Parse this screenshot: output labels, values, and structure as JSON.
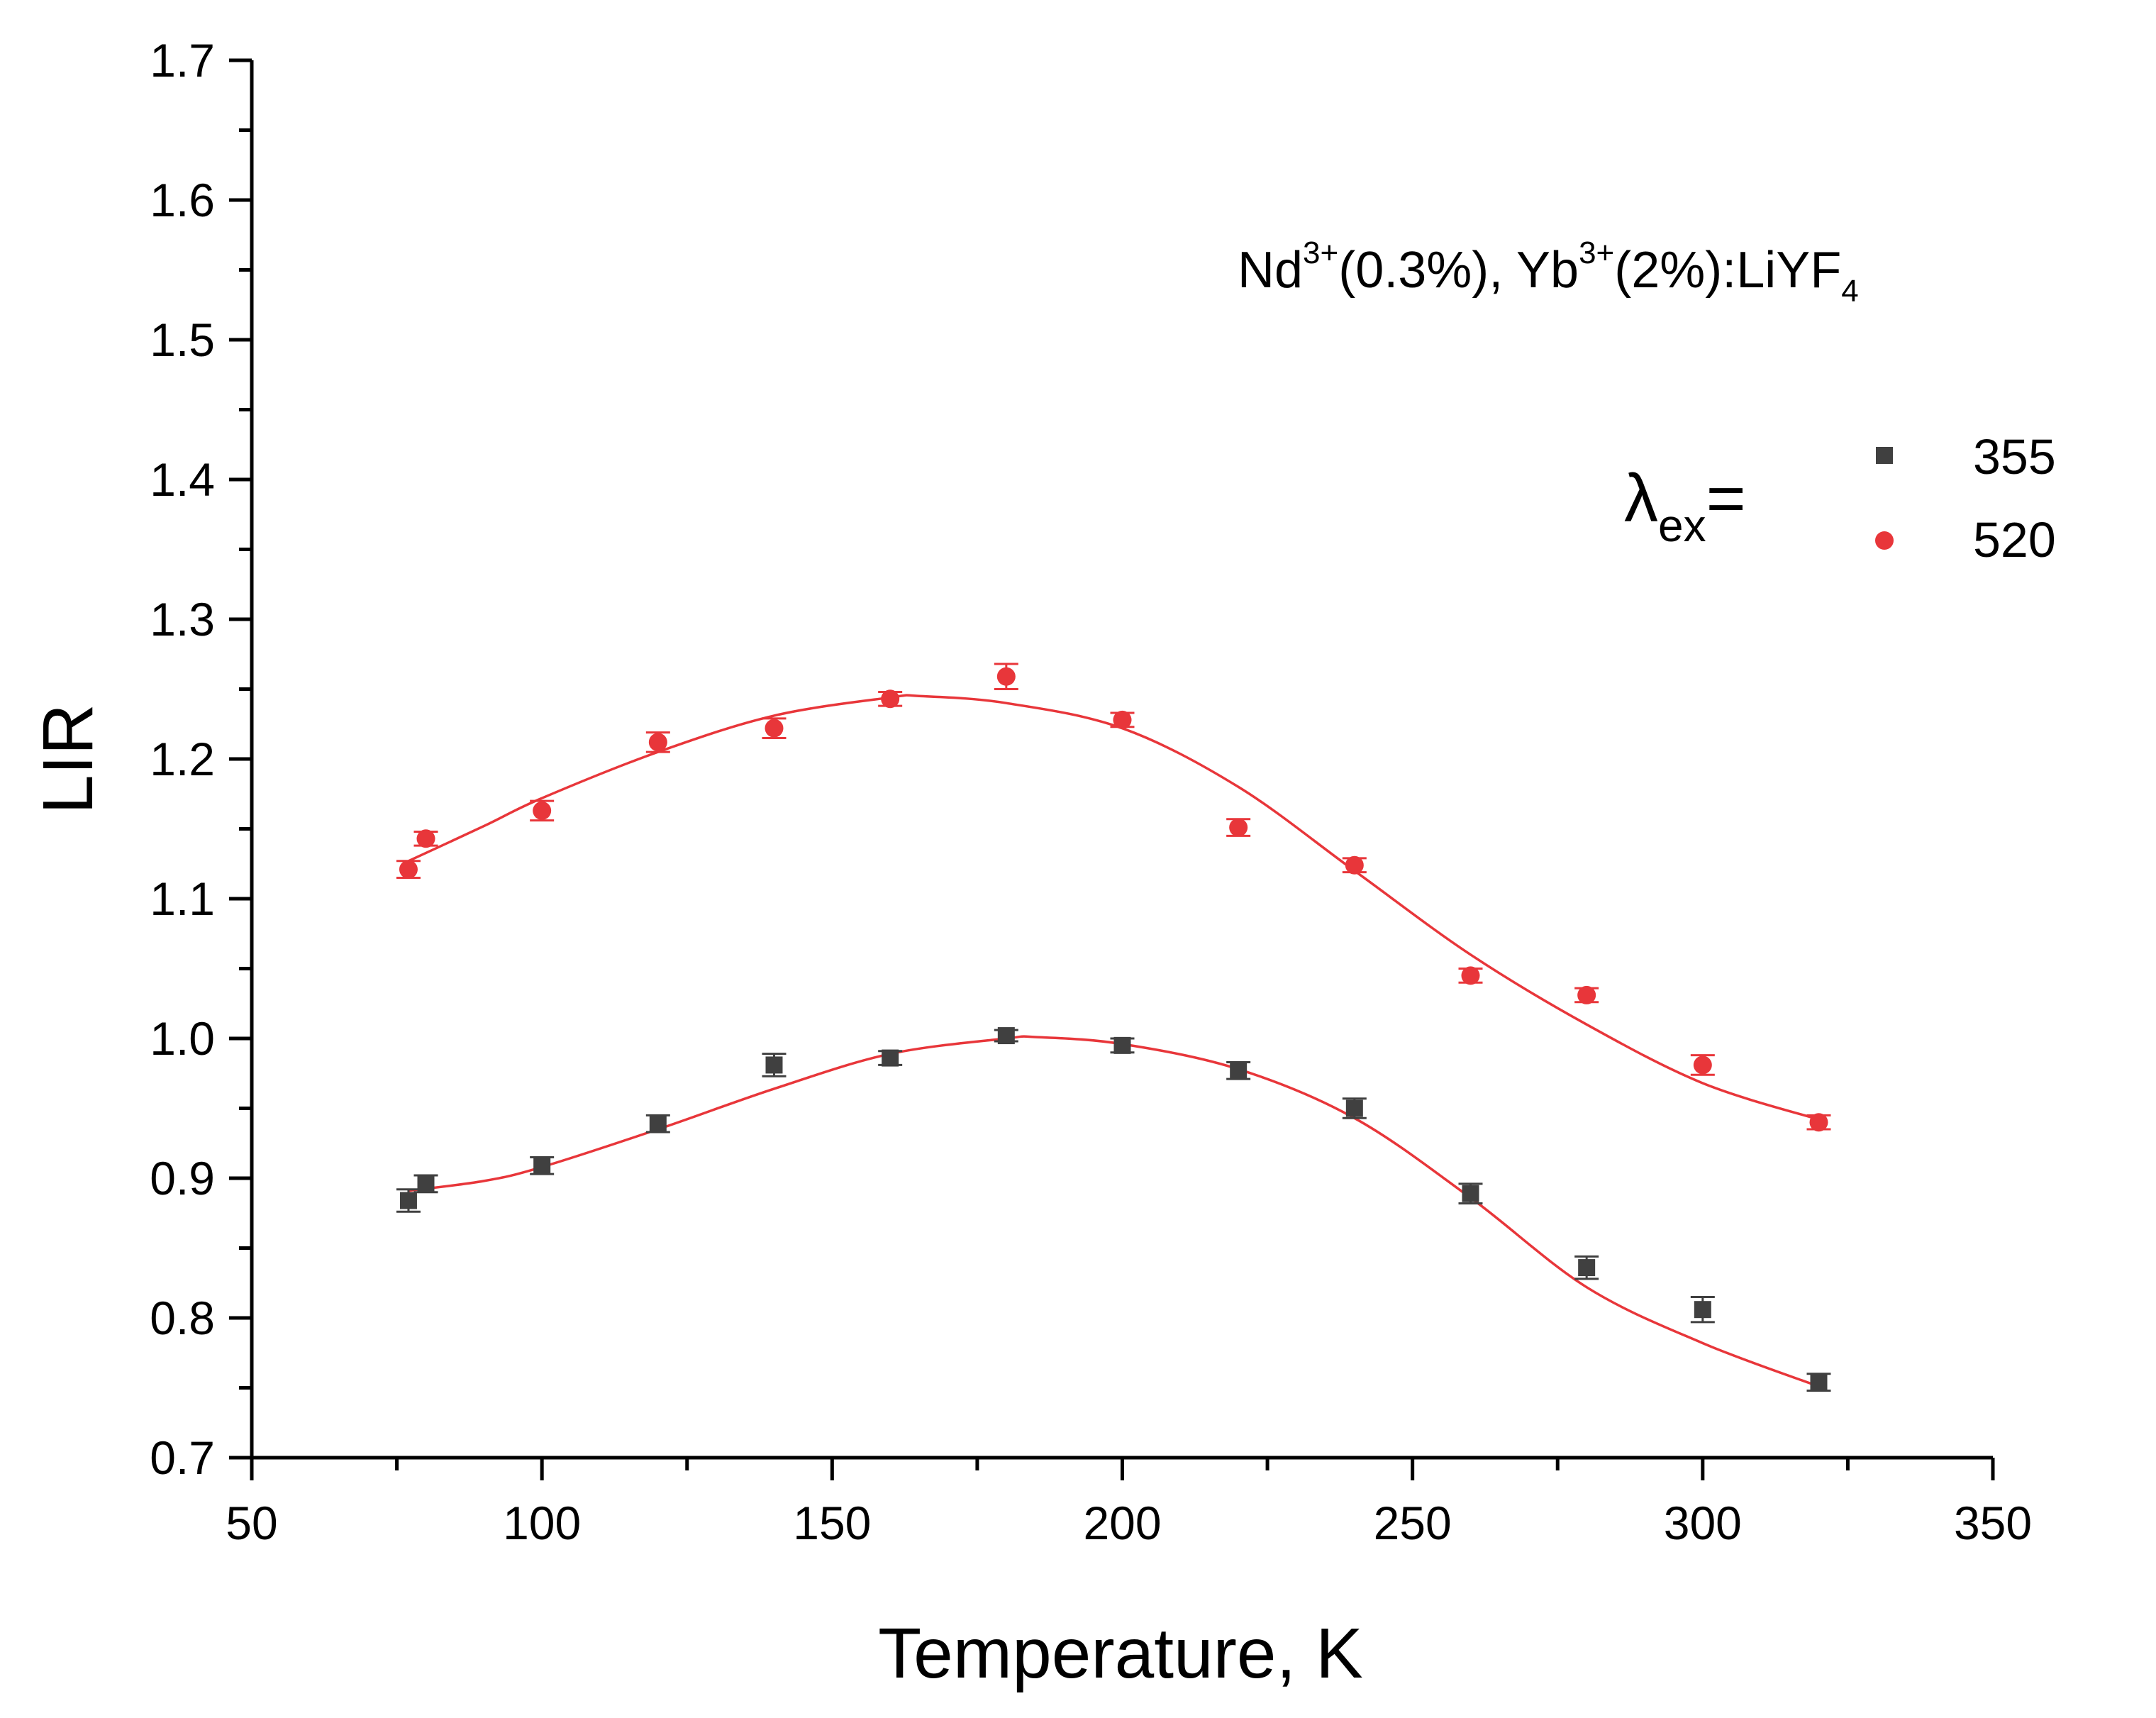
{
  "chart_data": {
    "type": "scatter",
    "title": "",
    "xlabel": "Temperature, K",
    "ylabel": "LIR",
    "xlim": [
      50,
      350
    ],
    "ylim": [
      0.7,
      1.7
    ],
    "xticks": [
      "50",
      "100",
      "150",
      "200",
      "250",
      "300",
      "350"
    ],
    "yticks": [
      "0.7",
      "0.8",
      "0.9",
      "1.0",
      "1.1",
      "1.2",
      "1.3",
      "1.4",
      "1.5",
      "1.6",
      "1.7"
    ],
    "grid": false,
    "legend_position": "top-right",
    "legend": {
      "prefix_main": "λ",
      "prefix_sub": "ex",
      "prefix_eq": "="
    },
    "annotation": {
      "part1": "Nd",
      "sup1": "3+",
      "part2": "(0.3%), Yb",
      "sup2": "3+",
      "part3": "(2%):LiYF",
      "sub3": "4"
    },
    "series": [
      {
        "name": "355",
        "marker": "square",
        "color": "#404040",
        "x": [
          77,
          80,
          100,
          120,
          140,
          160,
          180,
          200,
          220,
          240,
          260,
          280,
          300,
          320
        ],
        "y": [
          0.884,
          0.896,
          0.909,
          0.939,
          0.981,
          0.986,
          1.002,
          0.995,
          0.977,
          0.95,
          0.889,
          0.836,
          0.806,
          0.754
        ],
        "yerr": [
          0.008,
          0.006,
          0.006,
          0.006,
          0.008,
          0.005,
          0.004,
          0.005,
          0.006,
          0.007,
          0.007,
          0.008,
          0.009,
          0.006
        ]
      },
      {
        "name": "520",
        "marker": "circle",
        "color": "#e8363a",
        "x": [
          77,
          80,
          100,
          120,
          140,
          160,
          180,
          200,
          220,
          240,
          260,
          280,
          300,
          320
        ],
        "y": [
          1.121,
          1.143,
          1.163,
          1.212,
          1.222,
          1.243,
          1.259,
          1.228,
          1.151,
          1.124,
          1.045,
          1.031,
          0.981,
          0.94
        ],
        "yerr": [
          0.006,
          0.005,
          0.007,
          0.007,
          0.007,
          0.005,
          0.009,
          0.005,
          0.006,
          0.005,
          0.005,
          0.005,
          0.007,
          0.005
        ]
      }
    ],
    "fits": [
      {
        "name": "fit-355",
        "color": "#e8363a",
        "x": [
          77,
          90,
          100,
          120,
          140,
          160,
          180,
          185,
          200,
          220,
          240,
          260,
          280,
          300,
          320
        ],
        "y": [
          0.891,
          0.898,
          0.908,
          0.935,
          0.964,
          0.989,
          1.0,
          1.001,
          0.996,
          0.978,
          0.943,
          0.886,
          0.822,
          0.782,
          0.751
        ]
      },
      {
        "name": "fit-520",
        "color": "#e8363a",
        "x": [
          77,
          90,
          100,
          120,
          140,
          160,
          165,
          180,
          200,
          220,
          240,
          260,
          280,
          300,
          320
        ],
        "y": [
          1.127,
          1.152,
          1.172,
          1.205,
          1.231,
          1.244,
          1.245,
          1.24,
          1.222,
          1.18,
          1.12,
          1.06,
          1.01,
          0.968,
          0.942
        ]
      }
    ]
  }
}
